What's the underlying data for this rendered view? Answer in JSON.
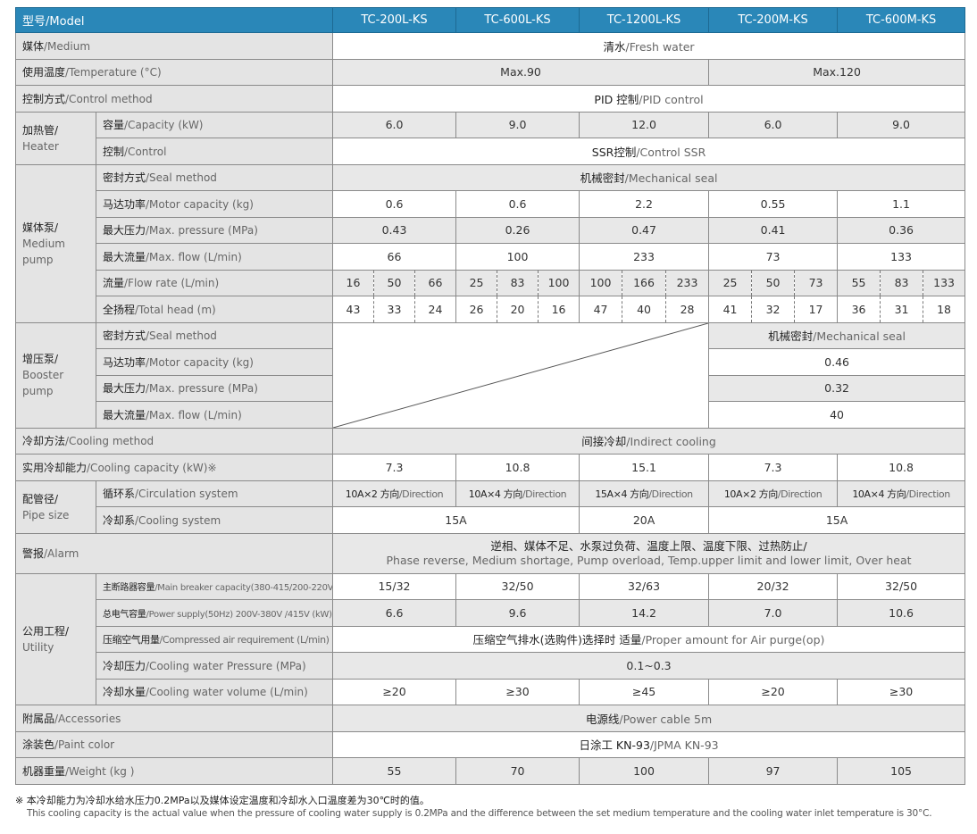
{
  "header": {
    "cn": "型号",
    "en": "/Model",
    "models": [
      "TC-200L-KS",
      "TC-600L-KS",
      "TC-1200L-KS",
      "TC-200M-KS",
      "TC-600M-KS"
    ],
    "color": "#2a87b8"
  },
  "rows": [
    {
      "cn": "媒体",
      "en": "/Medium",
      "bg": "white",
      "cells": [
        {
          "cn": "清水",
          "en": "/Fresh water",
          "span": 15
        }
      ]
    },
    {
      "cn": "使用温度",
      "en": "/Temperature (°C)",
      "bg": "gray",
      "cells": [
        {
          "t": "Max.90",
          "span": 9
        },
        {
          "t": "Max.120",
          "span": 6
        }
      ]
    },
    {
      "cn": "控制方式",
      "en": "/Control method",
      "bg": "white",
      "cells": [
        {
          "cn": "PID 控制",
          "en": "/PID control",
          "span": 15
        }
      ]
    },
    {
      "group": {
        "cn": "加热管/",
        "en": "Heater",
        "rowspan": 2
      },
      "cn": "容量",
      "en": "/Capacity (kW)",
      "bg": "gray",
      "cells": [
        {
          "t": "6.0",
          "span": 3
        },
        {
          "t": "9.0",
          "span": 3
        },
        {
          "t": "12.0",
          "span": 3
        },
        {
          "t": "6.0",
          "span": 3
        },
        {
          "t": "9.0",
          "span": 3
        }
      ]
    },
    {
      "cn": "控制",
      "en": "/Control",
      "bg": "white",
      "cells": [
        {
          "cn": "SSR控制",
          "en": "/Control  SSR",
          "span": 15
        }
      ]
    },
    {
      "group": {
        "cn": "媒体泵/",
        "en": "Medium pump",
        "rowspan": 6
      },
      "cn": "密封方式",
      "en": "/Seal method",
      "bg": "gray",
      "cells": [
        {
          "cn": "机械密封",
          "en": "/Mechanical seal",
          "span": 15
        }
      ]
    },
    {
      "cn": "马达功率",
      "en": "/Motor capacity (kg)",
      "bg": "white",
      "cells": [
        {
          "t": "0.6",
          "span": 3
        },
        {
          "t": "0.6",
          "span": 3
        },
        {
          "t": "2.2",
          "span": 3
        },
        {
          "t": "0.55",
          "span": 3
        },
        {
          "t": "1.1",
          "span": 3
        }
      ]
    },
    {
      "cn": "最大压力",
      "en": "/Max. pressure (MPa)",
      "bg": "gray",
      "cells": [
        {
          "t": "0.43",
          "span": 3
        },
        {
          "t": "0.26",
          "span": 3
        },
        {
          "t": "0.47",
          "span": 3
        },
        {
          "t": "0.41",
          "span": 3
        },
        {
          "t": "0.36",
          "span": 3
        }
      ]
    },
    {
      "cn": "最大流量",
      "en": "/Max. flow (L/min)",
      "bg": "white",
      "cells": [
        {
          "t": "66",
          "span": 3
        },
        {
          "t": "100",
          "span": 3
        },
        {
          "t": "233",
          "span": 3
        },
        {
          "t": "73",
          "span": 3
        },
        {
          "t": "133",
          "span": 3
        }
      ]
    },
    {
      "cn": "流量",
      "en": "/Flow rate (L/min)",
      "bg": "gray",
      "split": true,
      "cells": [
        {
          "t": "16"
        },
        {
          "t": "50"
        },
        {
          "t": "66"
        },
        {
          "t": "25"
        },
        {
          "t": "83"
        },
        {
          "t": "100"
        },
        {
          "t": "100"
        },
        {
          "t": "166"
        },
        {
          "t": "233"
        },
        {
          "t": "25"
        },
        {
          "t": "50"
        },
        {
          "t": "73"
        },
        {
          "t": "55"
        },
        {
          "t": "83"
        },
        {
          "t": "133"
        }
      ]
    },
    {
      "cn": "全扬程",
      "en": "/Total head (m)",
      "bg": "white",
      "split": true,
      "cells": [
        {
          "t": "43"
        },
        {
          "t": "33"
        },
        {
          "t": "24"
        },
        {
          "t": "26"
        },
        {
          "t": "20"
        },
        {
          "t": "16"
        },
        {
          "t": "47"
        },
        {
          "t": "40"
        },
        {
          "t": "28"
        },
        {
          "t": "41"
        },
        {
          "t": "32"
        },
        {
          "t": "17"
        },
        {
          "t": "36"
        },
        {
          "t": "31"
        },
        {
          "t": "18"
        }
      ]
    },
    {
      "group": {
        "cn": "增压泵/",
        "en": "Booster pump",
        "rowspan": 4
      },
      "cn": "密封方式",
      "en": "/Seal method",
      "bg": "gray",
      "cells": [
        {
          "diag": true,
          "span": 9,
          "rowspan": 4
        },
        {
          "cn": "机械密封",
          "en": "/Mechanical seal",
          "span": 6
        }
      ]
    },
    {
      "cn": "马达功率",
      "en": "/Motor capacity (kg)",
      "bg": "white",
      "cells": [
        {
          "t": "0.46",
          "span": 6
        }
      ]
    },
    {
      "cn": "最大压力",
      "en": "/Max. pressure (MPa)",
      "bg": "gray",
      "cells": [
        {
          "t": "0.32",
          "span": 6
        }
      ]
    },
    {
      "cn": "最大流量",
      "en": "/Max. flow (L/min)",
      "bg": "white",
      "cells": [
        {
          "t": "40",
          "span": 6
        }
      ]
    },
    {
      "cn": "冷却方法",
      "en": "/Cooling method",
      "bg": "gray",
      "cells": [
        {
          "cn": "间接冷却",
          "en": "/Indirect cooling",
          "span": 15
        }
      ]
    },
    {
      "cn": "实用冷却能力",
      "en": "/Cooling capacity (kW)※",
      "bg": "white",
      "cells": [
        {
          "t": "7.3",
          "span": 3
        },
        {
          "t": "10.8",
          "span": 3
        },
        {
          "t": "15.1",
          "span": 3
        },
        {
          "t": "7.3",
          "span": 3
        },
        {
          "t": "10.8",
          "span": 3
        }
      ]
    },
    {
      "group": {
        "cn": "配管径/",
        "en": "Pipe size",
        "rowspan": 2
      },
      "cn": "循环系",
      "en": "/Circulation system",
      "bg": "gray",
      "narrow": true,
      "cells": [
        {
          "cn": "10A×2 方向",
          "en": "/Direction",
          "span": 3
        },
        {
          "cn": "10A×4 方向",
          "en": "/Direction",
          "span": 3
        },
        {
          "cn": "15A×4 方向",
          "en": "/Direction",
          "span": 3
        },
        {
          "cn": "10A×2 方向",
          "en": "/Direction",
          "span": 3
        },
        {
          "cn": "10A×4 方向",
          "en": "/Direction",
          "span": 3
        }
      ]
    },
    {
      "cn": "冷却系",
      "en": "/Cooling system",
      "bg": "white",
      "cells": [
        {
          "t": "15A",
          "span": 6
        },
        {
          "t": "20A",
          "span": 3
        },
        {
          "t": "15A",
          "span": 6
        }
      ]
    },
    {
      "cn": "警报",
      "en": "/Alarm",
      "bg": "gray",
      "alarm": true,
      "cells": [
        {
          "cn": "逆相、媒体不足、水泵过负荷、温度上限、温度下限、过热防止/",
          "en": "Phase reverse, Medium shortage, Pump overload, Temp.upper limit and lower limit, Over heat",
          "span": 15,
          "twoline": true
        }
      ]
    },
    {
      "group": {
        "cn": "公用工程/",
        "en": "Utility",
        "rowspan": 5
      },
      "cn": "主断路器容量",
      "en": "/Main breaker capacity(380-415/200-220V)(A)",
      "smallLabel": true,
      "bg": "white",
      "cells": [
        {
          "t": "15/32",
          "span": 3
        },
        {
          "t": "32/50",
          "span": 3
        },
        {
          "t": "32/63",
          "span": 3
        },
        {
          "t": "20/32",
          "span": 3
        },
        {
          "t": "32/50",
          "span": 3
        }
      ]
    },
    {
      "cn": "总电气容量",
      "en": "/Power supply(50Hz) 200V-380V /415V (kW)",
      "smallLabel": true,
      "bg": "gray",
      "cells": [
        {
          "t": "6.6",
          "span": 3
        },
        {
          "t": "9.6",
          "span": 3
        },
        {
          "t": "14.2",
          "span": 3
        },
        {
          "t": "7.0",
          "span": 3
        },
        {
          "t": "10.6",
          "span": 3
        }
      ]
    },
    {
      "cn": "压缩空气用量",
      "en": "/Compressed air requirement (L/min)",
      "narrowLabel": true,
      "bg": "white",
      "cells": [
        {
          "cn": "压缩空气排水(选购件)选择时 适量",
          "en": "/Proper amount for Air purge(op)",
          "span": 15
        }
      ]
    },
    {
      "cn": "冷却压力",
      "en": "/Cooling water Pressure (MPa)",
      "bg": "gray",
      "cells": [
        {
          "t": "0.1~0.3",
          "span": 15
        }
      ]
    },
    {
      "cn": "冷却水量",
      "en": "/Cooling water volume (L/min)",
      "bg": "white",
      "cells": [
        {
          "t": "≥20",
          "span": 3
        },
        {
          "t": "≥30",
          "span": 3
        },
        {
          "t": "≥45",
          "span": 3
        },
        {
          "t": "≥20",
          "span": 3
        },
        {
          "t": "≥30",
          "span": 3
        }
      ]
    },
    {
      "cn": "附属品",
      "en": "/Accessories",
      "bg": "gray",
      "cells": [
        {
          "cn": "电源线",
          "en": "/Power cable 5m",
          "span": 15
        }
      ]
    },
    {
      "cn": "涂装色",
      "en": "/Paint color",
      "bg": "white",
      "cells": [
        {
          "cn": "日涂工 KN-93",
          "en": "/JPMA KN-93",
          "span": 15
        }
      ]
    },
    {
      "cn": "机器重量",
      "en": "/Weight (kg )",
      "bg": "gray",
      "cells": [
        {
          "t": "55",
          "span": 3
        },
        {
          "t": "70",
          "span": 3
        },
        {
          "t": "100",
          "span": 3
        },
        {
          "t": "97",
          "span": 3
        },
        {
          "t": "105",
          "span": 3
        }
      ]
    }
  ],
  "notes": {
    "cn": "※ 本冷却能力为冷却水给水压力0.2MPa以及媒体设定温度和冷却水入口温度差为30℃时的值。",
    "en": "This cooling capacity is the actual value when the pressure of cooling water supply is 0.2MPa and the difference between the set medium temperature and the cooling water inlet temperature is 30°C."
  }
}
